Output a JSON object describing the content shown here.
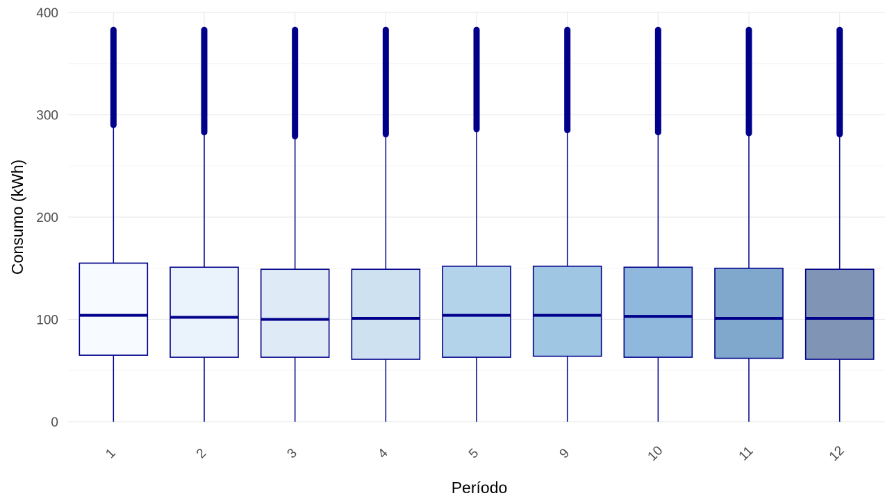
{
  "chart_data": {
    "type": "box",
    "xlabel": "Período",
    "ylabel": "Consumo (kWh)",
    "ylim": [
      0,
      400
    ],
    "yticks": [
      0,
      100,
      200,
      300,
      400
    ],
    "grid": true,
    "tick_label_rotation": 45,
    "colors": {
      "stroke": "#00008b",
      "grid_major": "#ebebeb",
      "grid_minor": "#f5f5f5",
      "tick_text": "#4d4d4d",
      "axis_title": "#000000"
    },
    "categories": [
      "1",
      "2",
      "3",
      "4",
      "5",
      "9",
      "10",
      "11",
      "12"
    ],
    "boxes": [
      {
        "category": "1",
        "whisker_low": 0,
        "q1": 65,
        "median": 104,
        "q3": 155,
        "outliers_from": 290,
        "outliers_to": 383,
        "fill": "#f7fbff"
      },
      {
        "category": "2",
        "whisker_low": 0,
        "q1": 63,
        "median": 102,
        "q3": 151,
        "outliers_from": 283,
        "outliers_to": 383,
        "fill": "#eaf2fb"
      },
      {
        "category": "3",
        "whisker_low": 0,
        "q1": 63,
        "median": 100,
        "q3": 149,
        "outliers_from": 279,
        "outliers_to": 383,
        "fill": "#deebf7"
      },
      {
        "category": "4",
        "whisker_low": 0,
        "q1": 61,
        "median": 101,
        "q3": 149,
        "outliers_from": 281,
        "outliers_to": 383,
        "fill": "#cde1f1"
      },
      {
        "category": "5",
        "whisker_low": 0,
        "q1": 63,
        "median": 104,
        "q3": 152,
        "outliers_from": 286,
        "outliers_to": 383,
        "fill": "#b3d3ea"
      },
      {
        "category": "9",
        "whisker_low": 0,
        "q1": 64,
        "median": 104,
        "q3": 152,
        "outliers_from": 285,
        "outliers_to": 383,
        "fill": "#9fc6e2"
      },
      {
        "category": "10",
        "whisker_low": 0,
        "q1": 63,
        "median": 103,
        "q3": 151,
        "outliers_from": 283,
        "outliers_to": 383,
        "fill": "#8fb8dc"
      },
      {
        "category": "11",
        "whisker_low": 0,
        "q1": 62,
        "median": 101,
        "q3": 150,
        "outliers_from": 282,
        "outliers_to": 383,
        "fill": "#80a8cc"
      },
      {
        "category": "12",
        "whisker_low": 0,
        "q1": 61,
        "median": 101,
        "q3": 149,
        "outliers_from": 281,
        "outliers_to": 383,
        "fill": "#8095b5"
      }
    ]
  }
}
